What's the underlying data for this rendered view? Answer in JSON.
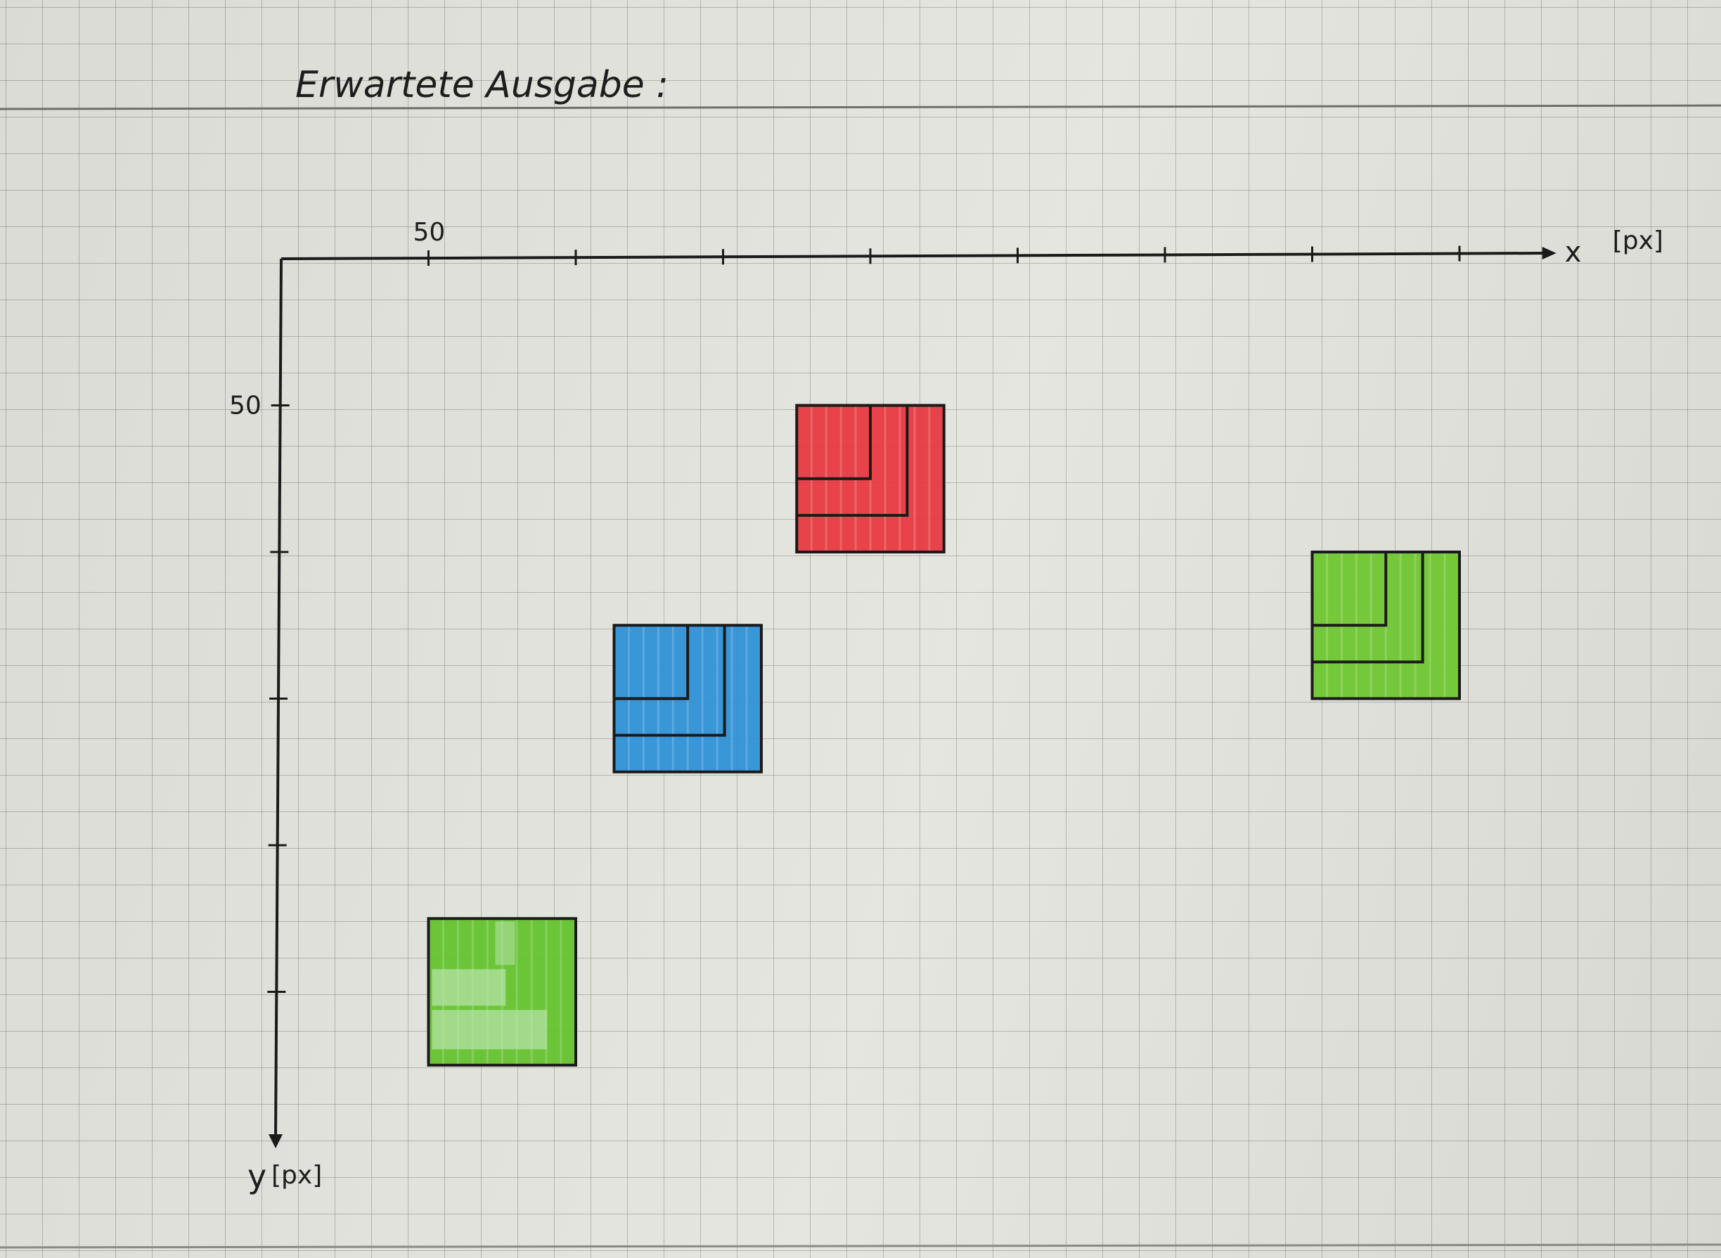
{
  "title": "Erwartete Ausgabe :",
  "axes": {
    "x_label": "x",
    "x_unit": "[px]",
    "y_label": "y",
    "y_unit": "[px]",
    "x_tick_label": "50",
    "y_tick_label": "50",
    "x_ticks": [
      50,
      100,
      150,
      200,
      250,
      300,
      350,
      400
    ],
    "y_ticks": [
      50,
      100,
      150,
      200,
      250
    ],
    "x_max": 430,
    "y_max": 300
  },
  "squares": [
    {
      "name": "red-square",
      "color": "#e8343d",
      "x": 175,
      "y": 50,
      "size": 50
    },
    {
      "name": "blue-square",
      "color": "#2a8fd6",
      "x": 113,
      "y": 125,
      "size": 50
    },
    {
      "name": "green-square-right",
      "color": "#6cc52e",
      "x": 350,
      "y": 100,
      "size": 50
    },
    {
      "name": "green-square-bottom",
      "color": "#62c22a",
      "x": 50,
      "y": 225,
      "size": 50
    }
  ]
}
